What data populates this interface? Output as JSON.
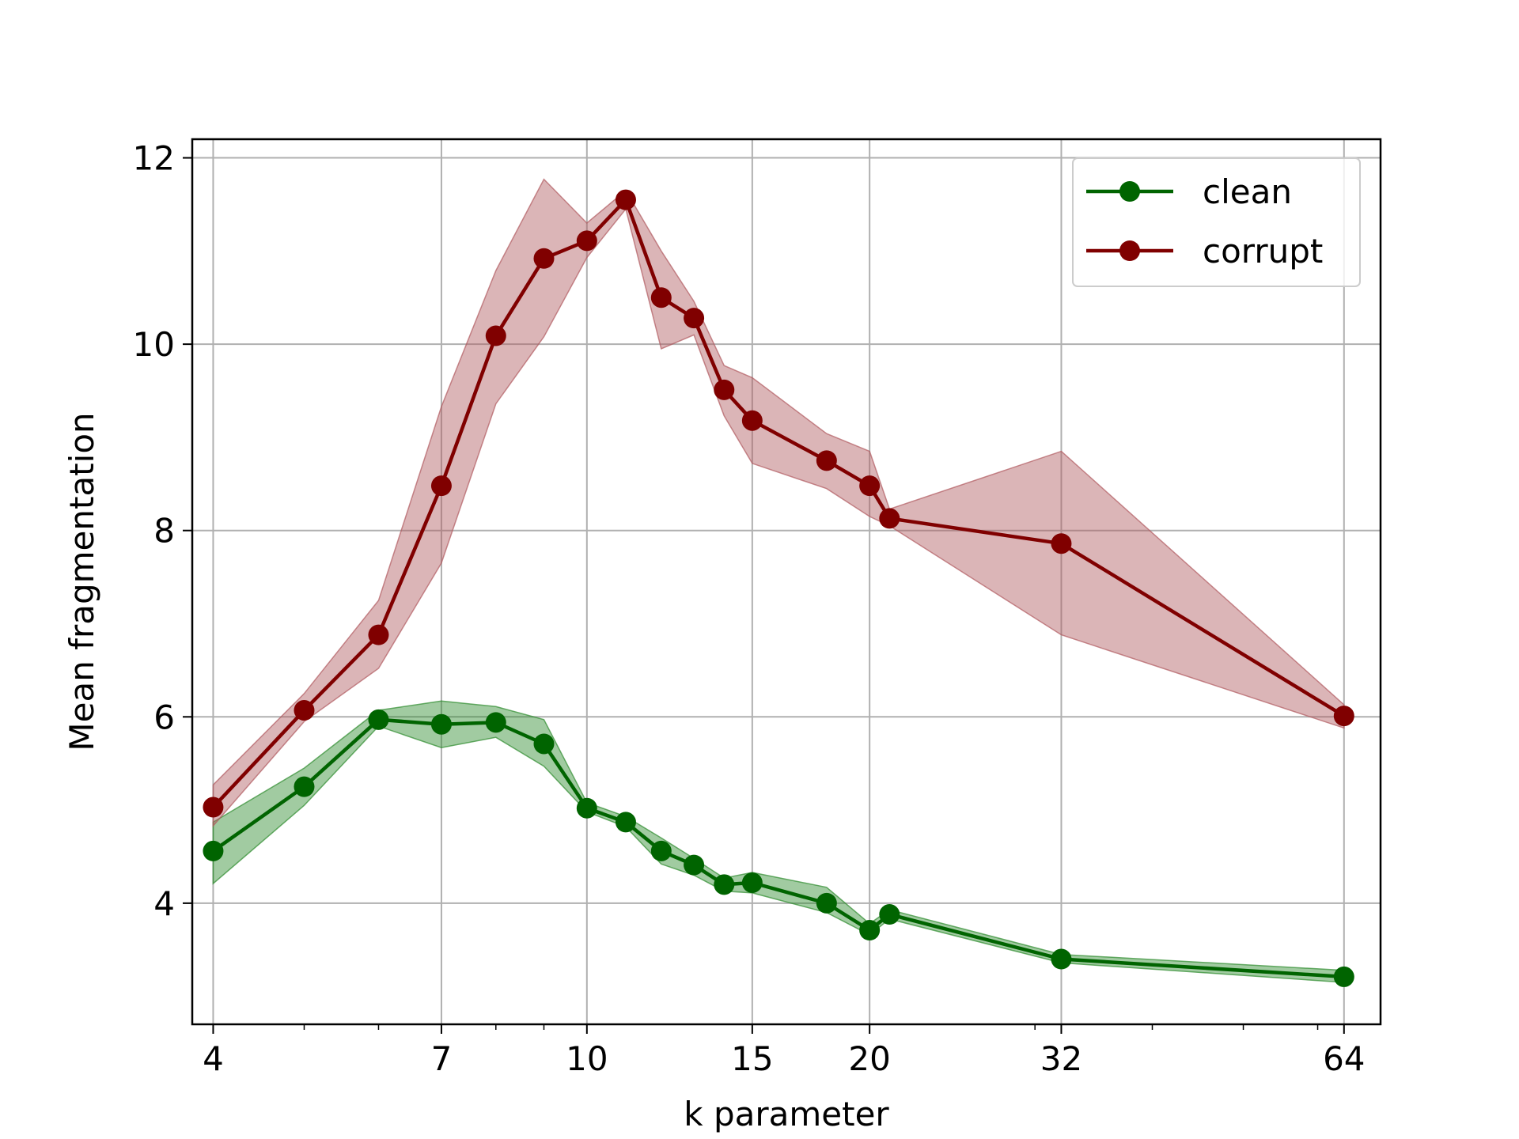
{
  "chart_data": {
    "type": "line",
    "title": "",
    "xlabel": "k parameter",
    "ylabel": "Mean fragmentation",
    "xscale": "log",
    "xlim": [
      3.8,
      70
    ],
    "ylim": [
      2.7,
      12.2
    ],
    "x_ticks": [
      4,
      7,
      10,
      15,
      20,
      32,
      64
    ],
    "x_tick_labels": [
      "4",
      "7",
      "10",
      "15",
      "20",
      "32",
      "64"
    ],
    "y_ticks": [
      4,
      6,
      8,
      10,
      12
    ],
    "y_tick_labels": [
      "4",
      "6",
      "8",
      "10",
      "12"
    ],
    "grid": true,
    "legend_position": "top-right",
    "series": [
      {
        "name": "clean",
        "color": "#006400",
        "band_color": "#2e8b2e",
        "x": [
          4,
          5,
          6,
          7,
          8,
          9,
          10,
          11,
          12,
          13,
          14,
          15,
          18,
          20,
          21,
          32,
          64
        ],
        "y": [
          4.56,
          5.25,
          5.97,
          5.92,
          5.94,
          5.71,
          5.02,
          4.87,
          4.56,
          4.41,
          4.2,
          4.22,
          4.0,
          3.71,
          3.88,
          3.4,
          3.21
        ],
        "lower": [
          4.21,
          5.05,
          5.9,
          5.67,
          5.78,
          5.47,
          4.98,
          4.82,
          4.42,
          4.3,
          4.13,
          4.11,
          3.9,
          3.66,
          3.83,
          3.36,
          3.15
        ],
        "upper": [
          4.87,
          5.45,
          6.07,
          6.17,
          6.11,
          5.97,
          5.08,
          4.93,
          4.7,
          4.48,
          4.27,
          4.33,
          4.17,
          3.78,
          3.93,
          3.45,
          3.28
        ]
      },
      {
        "name": "corrupt",
        "color": "#800000",
        "band_color": "#b05a5f",
        "x": [
          4,
          5,
          6,
          7,
          8,
          9,
          10,
          11,
          12,
          13,
          14,
          15,
          18,
          20,
          21,
          32,
          64
        ],
        "y": [
          5.03,
          6.07,
          6.88,
          8.48,
          10.09,
          10.92,
          11.11,
          11.55,
          10.5,
          10.28,
          9.51,
          9.18,
          8.75,
          8.48,
          8.13,
          7.86,
          6.01
        ],
        "lower": [
          4.83,
          5.95,
          6.52,
          7.65,
          9.36,
          10.08,
          10.93,
          11.45,
          9.95,
          10.1,
          9.23,
          8.72,
          8.45,
          8.15,
          8.05,
          6.88,
          5.88
        ],
        "upper": [
          5.27,
          6.25,
          7.25,
          9.33,
          10.79,
          11.77,
          11.3,
          11.65,
          11.0,
          10.46,
          9.77,
          9.64,
          9.04,
          8.85,
          8.23,
          8.85,
          6.13
        ]
      }
    ]
  }
}
